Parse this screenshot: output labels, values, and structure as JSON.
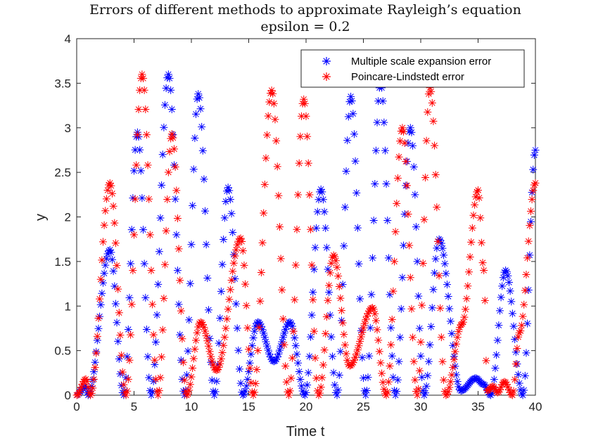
{
  "chart_data": {
    "type": "scatter",
    "title": "Errors of different methods to approximate Rayleigh’s equation",
    "subtitle": "epsilon = 0.2",
    "xlabel": "Time t",
    "ylabel": "y",
    "xlim": [
      0,
      40
    ],
    "ylim": [
      0,
      4
    ],
    "xticks": [
      0,
      5,
      10,
      15,
      20,
      25,
      30,
      35,
      40
    ],
    "yticks": [
      0,
      0.5,
      1,
      1.5,
      2,
      2.5,
      3,
      3.5,
      4
    ],
    "grid": false,
    "legend_location": "top-right",
    "marker": "*",
    "sample_step": 0.1,
    "series": [
      {
        "name": "Multiple scale expansion error",
        "color": "#0000ff",
        "extrema": [
          [
            0,
            0
          ],
          [
            0.7,
            0.1
          ],
          [
            1,
            0
          ],
          [
            2.9,
            1.63
          ],
          [
            4.1,
            0
          ],
          [
            5.3,
            2.95
          ],
          [
            6.5,
            0
          ],
          [
            8,
            3.6
          ],
          [
            9.4,
            0
          ],
          [
            10.6,
            3.38
          ],
          [
            12,
            0
          ],
          [
            13.2,
            2.33
          ],
          [
            14.5,
            0
          ],
          [
            15.8,
            0.82
          ],
          [
            17.2,
            0.38
          ],
          [
            18.6,
            0.82
          ],
          [
            19.9,
            0
          ],
          [
            21.3,
            2.31
          ],
          [
            22.7,
            0
          ],
          [
            23.9,
            3.35
          ],
          [
            25.2,
            0
          ],
          [
            26.5,
            3.5
          ],
          [
            27.8,
            0
          ],
          [
            29.1,
            3.0
          ],
          [
            30.3,
            0
          ],
          [
            31.6,
            1.75
          ],
          [
            33.5,
            0.05
          ],
          [
            34.8,
            0.19
          ],
          [
            35.5,
            0.12
          ],
          [
            36.1,
            0
          ],
          [
            37.4,
            1.4
          ],
          [
            38.9,
            0
          ],
          [
            40,
            2.75
          ]
        ]
      },
      {
        "name": "Poincare-Lindstedt error",
        "color": "#ff0000",
        "extrema": [
          [
            0,
            0
          ],
          [
            0.8,
            0.18
          ],
          [
            1.2,
            0
          ],
          [
            2.9,
            2.38
          ],
          [
            4.3,
            0
          ],
          [
            5.7,
            3.6
          ],
          [
            7.1,
            0
          ],
          [
            8.3,
            2.93
          ],
          [
            9.6,
            0
          ],
          [
            10.8,
            0.82
          ],
          [
            12.2,
            0.28
          ],
          [
            14.3,
            1.76
          ],
          [
            15.4,
            0
          ],
          [
            17,
            3.42
          ],
          [
            18.5,
            0
          ],
          [
            19.8,
            3.32
          ],
          [
            21.1,
            0
          ],
          [
            22.4,
            1.57
          ],
          [
            23.8,
            0.33
          ],
          [
            25.8,
            0.98
          ],
          [
            27,
            0
          ],
          [
            28.4,
            3.0
          ],
          [
            29.7,
            0
          ],
          [
            30.8,
            3.45
          ],
          [
            32.2,
            0
          ],
          [
            33.6,
            0.8
          ],
          [
            35,
            2.3
          ],
          [
            35.5,
            1.4
          ],
          [
            35.8,
            0.05
          ],
          [
            36.3,
            0.1
          ],
          [
            36.7,
            0.03
          ],
          [
            37.3,
            0.15
          ],
          [
            38,
            0
          ],
          [
            38.6,
            0.7
          ],
          [
            40,
            2.38
          ]
        ]
      }
    ]
  }
}
